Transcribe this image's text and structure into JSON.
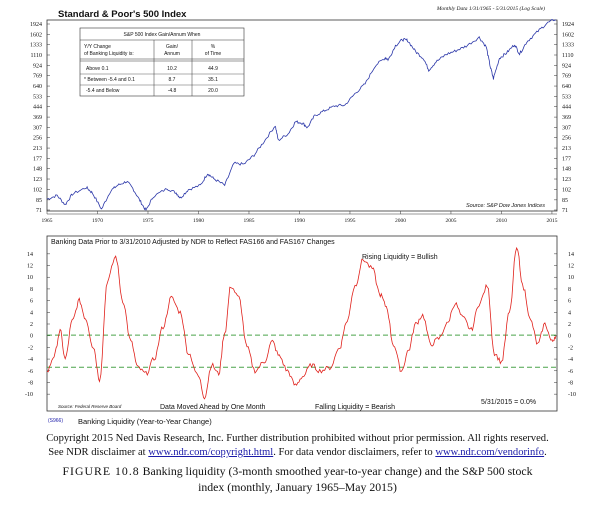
{
  "chart_data": [
    {
      "type": "line",
      "title": "Standard & Poor's 500 Index",
      "subtitle": "Monthly Data 1/31/1965 - 5/31/2015 (Log Scale)",
      "scale": "log",
      "xlim": [
        1965,
        2015.5
      ],
      "ylim": [
        71,
        1924
      ],
      "x_ticks": [
        "1965",
        "1970",
        "1975",
        "1980",
        "1985",
        "1990",
        "1995",
        "2000",
        "2005",
        "2010",
        "2015"
      ],
      "y_ticks": [
        "1924",
        "1602",
        "1333",
        "1110",
        "924",
        "769",
        "640",
        "533",
        "444",
        "369",
        "307",
        "256",
        "213",
        "177",
        "148",
        "123",
        "102",
        "85",
        "71"
      ],
      "source": "Source: S&P Dow Jones Indices",
      "legend_placement": "top-left",
      "grid": false,
      "table": {
        "title": "S&P 500 Index Gain/Annum When",
        "headers": [
          [
            "Y/Y Change",
            "of Banking Liquidity is:"
          ],
          [
            "Gain/",
            "Annum"
          ],
          [
            "%",
            "of Time"
          ]
        ],
        "rows": [
          {
            "label": "Above 0.1",
            "gain": "10.2",
            "time": "44.9"
          },
          {
            "label": "* Between -5.4 and 0.1",
            "gain": "8.7",
            "time": "35.1"
          },
          {
            "label": "-5.4 and Below",
            "gain": "-4.8",
            "time": "20.0"
          }
        ]
      },
      "series": [
        {
          "x": [
            1965,
            1966,
            1966.8,
            1967.5,
            1968.9,
            1969.5,
            1970.4,
            1971.3,
            1972,
            1972.9,
            1973.5,
            1974.2,
            1974.8,
            1975.5,
            1976.9,
            1977.8,
            1978.2,
            1979,
            1980.2,
            1980.9,
            1981.5,
            1982.6,
            1983.5,
            1984.5,
            1985.5,
            1986.5,
            1987.6,
            1987.9,
            1988.9,
            1989.6,
            1990.3,
            1990.8,
            1991.5,
            1992.5,
            1993.5,
            1994.5,
            1995.5,
            1996.5,
            1997.5,
            1998.5,
            1998.8,
            1999.5,
            2000.2,
            2000.7,
            2001.5,
            2002.3,
            2002.8,
            2003.5,
            2004.5,
            2005.5,
            2006.5,
            2007.8,
            2008.5,
            2008.9,
            2009.2,
            2009.8,
            2010.5,
            2011.3,
            2011.8,
            2012.5,
            2013.5,
            2014.5,
            2015.4
          ],
          "y": [
            86,
            92,
            78,
            94,
            106,
            96,
            72,
            100,
            110,
            118,
            104,
            84,
            70,
            90,
            104,
            96,
            88,
            102,
            110,
            136,
            124,
            110,
            162,
            160,
            188,
            240,
            318,
            244,
            276,
            340,
            332,
            306,
            378,
            414,
            450,
            456,
            560,
            665,
            920,
            1060,
            1020,
            1310,
            1460,
            1440,
            1180,
            1040,
            850,
            980,
            1120,
            1200,
            1300,
            1520,
            1280,
            900,
            730,
            1050,
            1150,
            1340,
            1130,
            1400,
            1660,
            1950,
            2110
          ]
        }
      ]
    },
    {
      "type": "line",
      "title": "Banking Data Prior to 3/31/2010 Adjusted by NDR to Reflect FAS166 and FAS167 Changes",
      "ylim": [
        -11,
        15
      ],
      "xlim": [
        1965,
        2015.5
      ],
      "y_ticks": [
        "14",
        "12",
        "10",
        "8",
        "6",
        "4",
        "2",
        "0",
        "-2",
        "-4",
        "-6",
        "-8",
        "-10"
      ],
      "reference_lines": [
        0.1,
        -5.4
      ],
      "annotations": [
        "Rising Liquidity = Bullish",
        "Falling Liquidity = Bearish",
        "Data Moved Ahead by One Month",
        "5/31/2015 = 0.0%"
      ],
      "source": "Source: Federal Reserve Board",
      "footer_code": "(S966)",
      "footer_label": "Banking Liquidity (Year-to-Year Change)",
      "colors": {
        "line": "#e0201a",
        "ref_upper": "#4aa34a",
        "ref_lower": "#4aa34a"
      },
      "series": [
        {
          "x": [
            1965,
            1965.7,
            1966.3,
            1966.8,
            1967.5,
            1968.2,
            1968.8,
            1969.6,
            1970.2,
            1971.0,
            1971.8,
            1972.5,
            1973.3,
            1974.0,
            1974.8,
            1975.6,
            1976.5,
            1977.3,
            1978.2,
            1979.0,
            1980.0,
            1980.6,
            1981.3,
            1982.0,
            1982.6,
            1983.2,
            1984.0,
            1984.8,
            1985.6,
            1986.5,
            1987.3,
            1988.0,
            1988.8,
            1989.6,
            1990.3,
            1991.2,
            1992.0,
            1993.0,
            1994.0,
            1994.6,
            1995.5,
            1996.3,
            1997.2,
            1998.0,
            1998.6,
            1999.3,
            2000.1,
            2000.8,
            2001.5,
            2002.2,
            2003.0,
            2003.8,
            2004.6,
            2005.4,
            2006.2,
            2007.0,
            2007.8,
            2008.6,
            2009.3,
            2010.0,
            2010.8,
            2011.5,
            2012.2,
            2012.9,
            2013.6,
            2014.3,
            2015.0,
            2015.4
          ],
          "y": [
            -6.2,
            -3.5,
            0.8,
            -4.0,
            2.5,
            6.0,
            3.0,
            -2.0,
            -7.5,
            9.5,
            13.5,
            6.0,
            -1.0,
            -5.5,
            -6.5,
            -4.0,
            1.5,
            6.5,
            4.0,
            -3.0,
            -7.0,
            -10.5,
            -5.0,
            -6.5,
            0.5,
            8.5,
            6.5,
            -2.0,
            -6.0,
            -4.5,
            -1.0,
            -3.5,
            -6.0,
            -8.5,
            -7.0,
            -5.0,
            -6.0,
            -5.5,
            -2.0,
            2.0,
            8.5,
            13.0,
            11.5,
            7.0,
            5.0,
            -1.5,
            -6.0,
            -2.5,
            2.0,
            3.5,
            -1.5,
            -0.5,
            2.0,
            5.5,
            3.0,
            1.0,
            5.5,
            8.5,
            -3.0,
            -4.5,
            4.0,
            15.0,
            8.0,
            2.5,
            -1.5,
            2.0,
            -1.0,
            0.0
          ]
        }
      ]
    }
  ],
  "caption": {
    "line1": "Copyright 2015 Ned Davis Research, Inc. Further distribution prohibited without prior permission. All rights reserved.",
    "line2_a": "See NDR disclaimer at ",
    "line2_link1": "www.ndr.com/copyright.html",
    "line2_b": ". For data vendor disclaimers, refer to ",
    "line2_link2": "www.ndr.com/vendorinfo",
    "line2_c": ".",
    "figure_label": "FIGURE 10.8",
    "figure_text": " Banking liquidity (3-month smoothed year-to-year change) and the S&P 500 stock",
    "figure_text2": "index (monthly, January 1965–May 2015)"
  }
}
